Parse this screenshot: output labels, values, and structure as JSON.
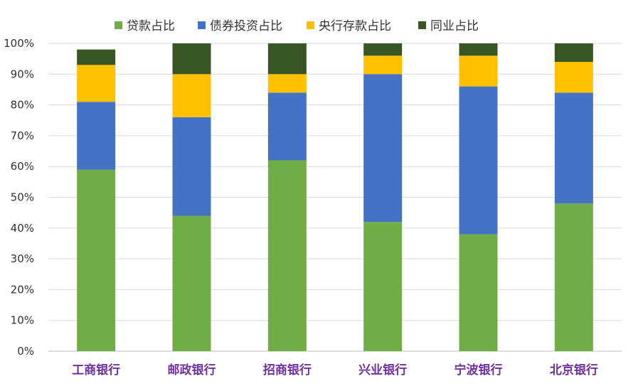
{
  "chart_data": {
    "type": "bar",
    "stacked": true,
    "categories": [
      "工商银行",
      "邮政银行",
      "招商银行",
      "兴业银行",
      "宁波银行",
      "北京银行"
    ],
    "series": [
      {
        "name": "贷款占比",
        "color": "#70ad47",
        "values": [
          59,
          44,
          62,
          42,
          38,
          48
        ]
      },
      {
        "name": "债券投资占比",
        "color": "#4472c4",
        "values": [
          22,
          32,
          22,
          48,
          48,
          36
        ]
      },
      {
        "name": "央行存款占比",
        "color": "#ffc000",
        "values": [
          12,
          14,
          6,
          6,
          10,
          10
        ]
      },
      {
        "name": "同业占比",
        "color": "#375623",
        "values": [
          5,
          10,
          10,
          4,
          4,
          6
        ]
      }
    ],
    "yticks": [
      "0%",
      "10%",
      "20%",
      "30%",
      "40%",
      "50%",
      "60%",
      "70%",
      "80%",
      "90%",
      "100%"
    ],
    "ylim": [
      0,
      100
    ],
    "grid": true,
    "legend_position": "top"
  }
}
